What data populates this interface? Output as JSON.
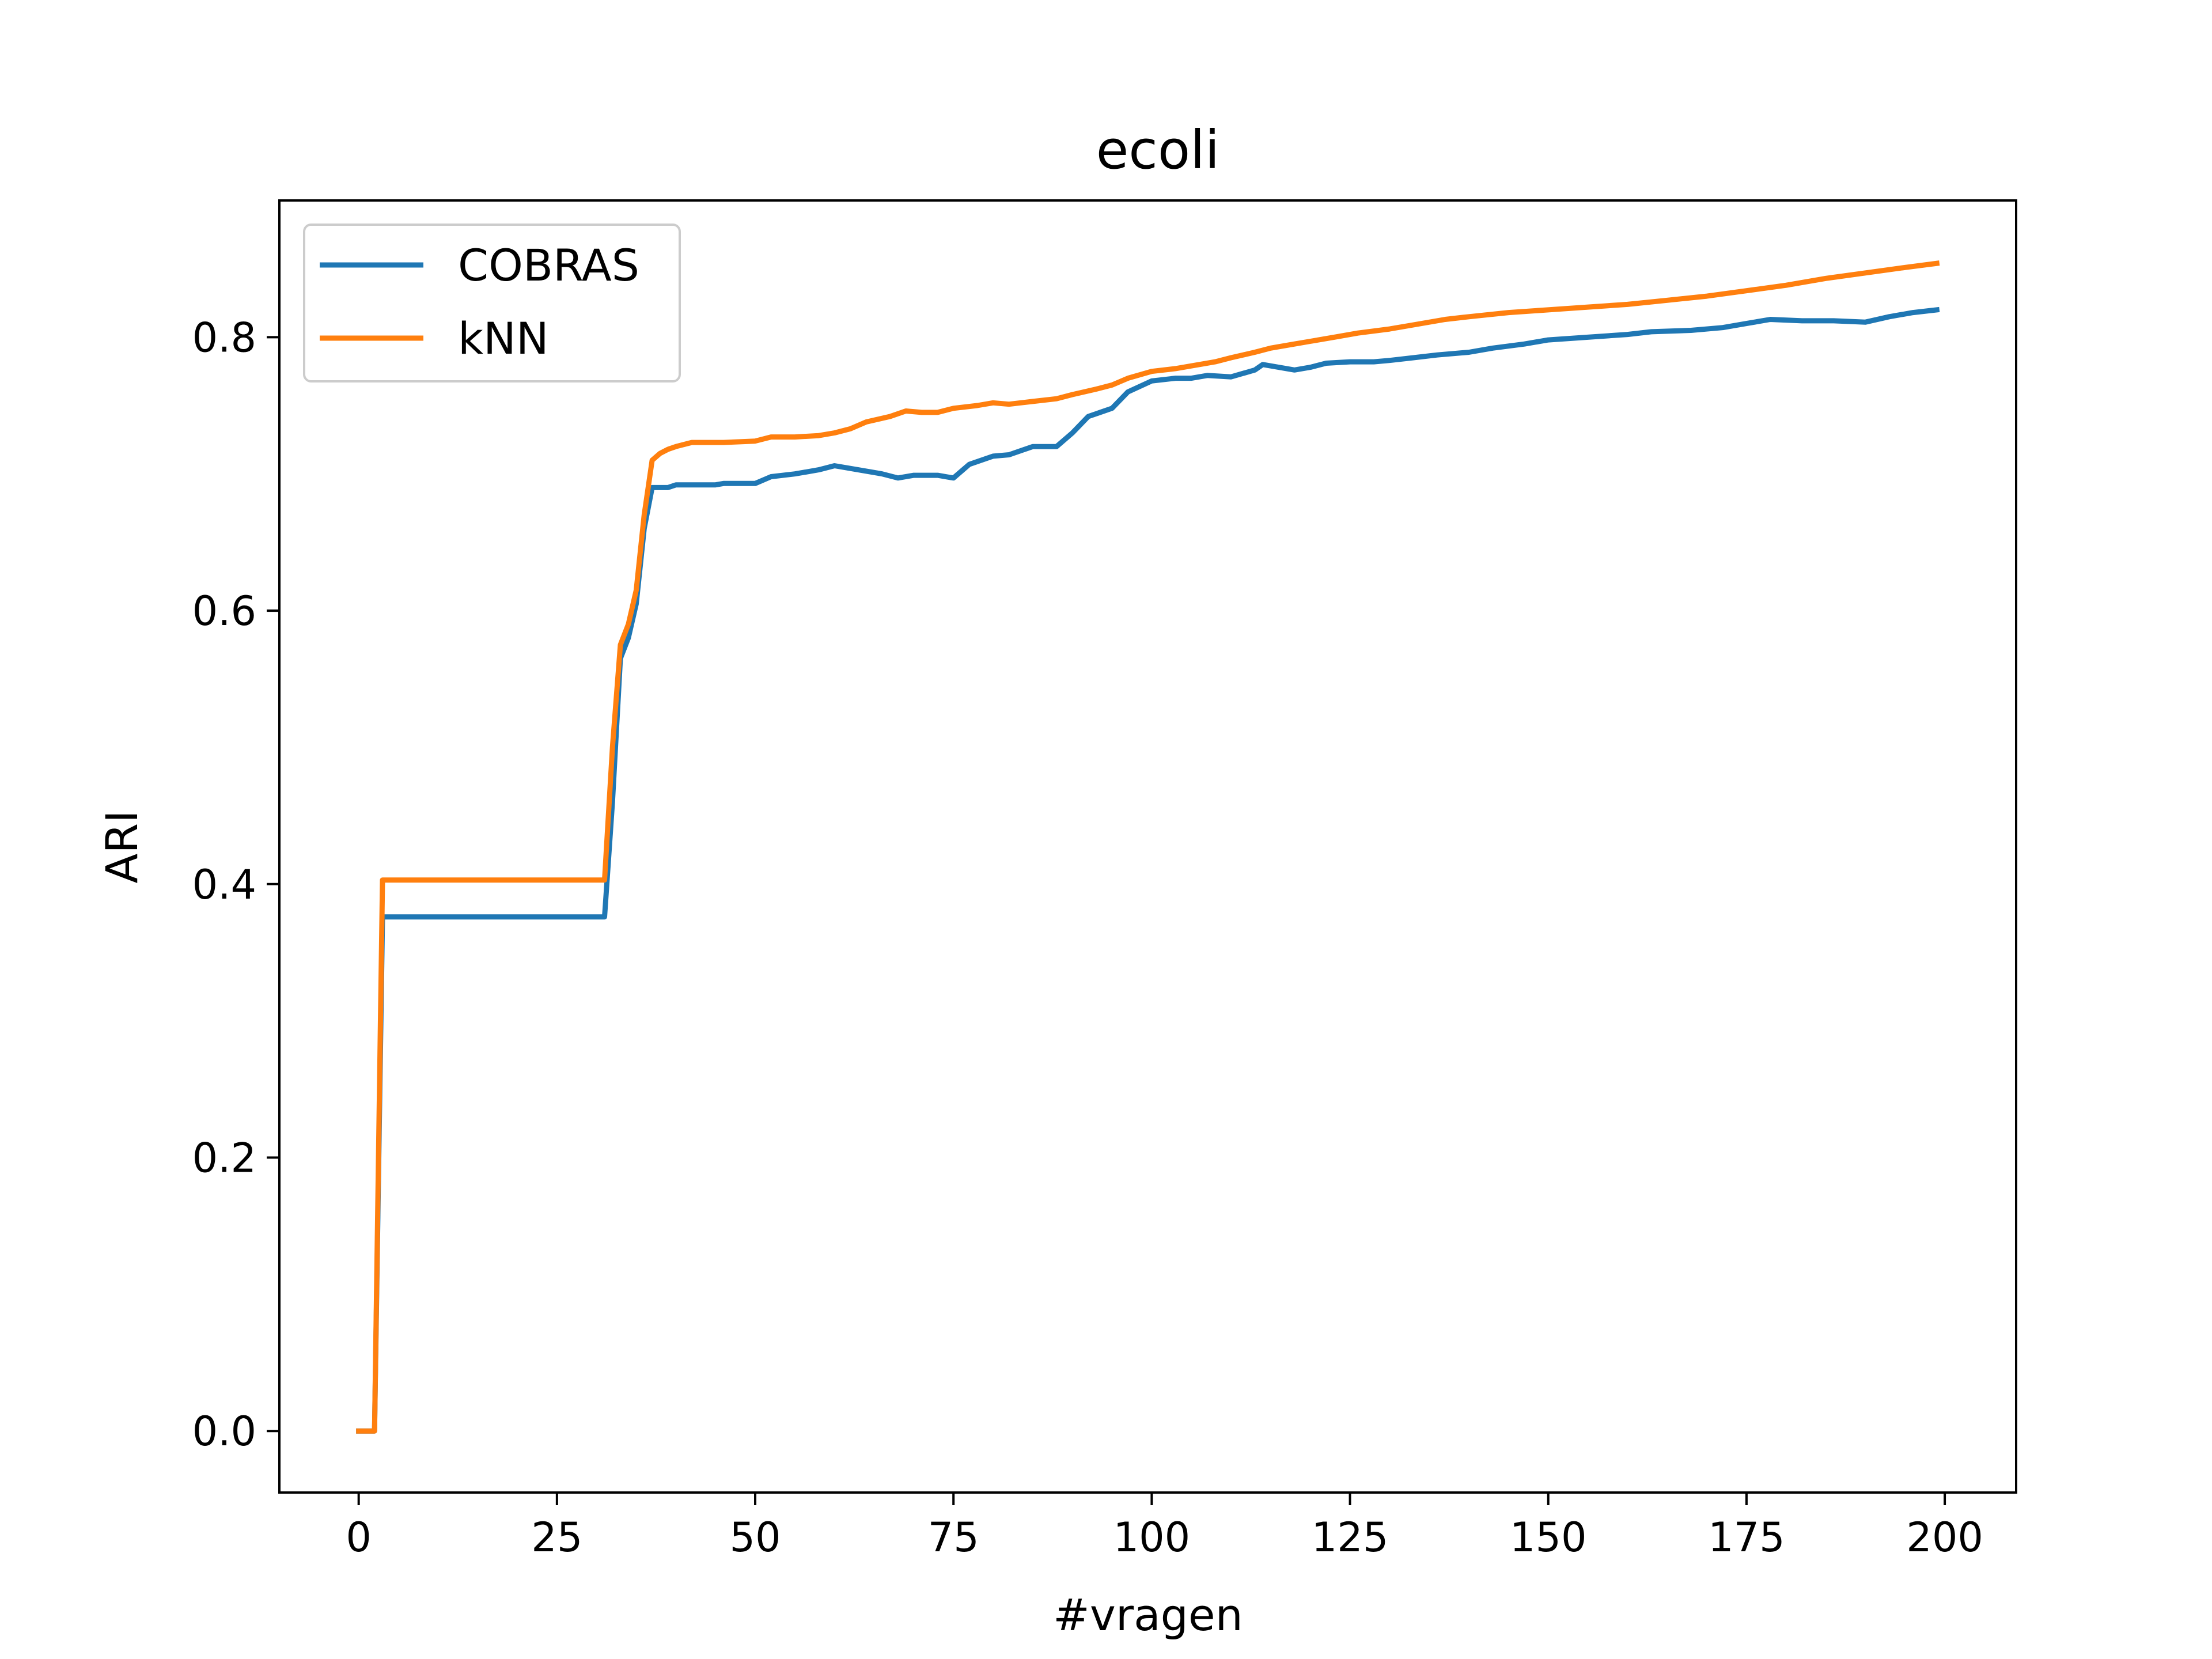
{
  "chart_data": {
    "type": "line",
    "title": "ecoli",
    "xlabel": "#vragen",
    "ylabel": "ARI",
    "xlim": [
      -10,
      209
    ],
    "ylim": [
      -0.045,
      0.9
    ],
    "xticks": [
      0,
      25,
      50,
      75,
      100,
      125,
      150,
      175,
      200
    ],
    "xtick_labels": [
      "0",
      "25",
      "50",
      "75",
      "100",
      "125",
      "150",
      "175",
      "200"
    ],
    "yticks": [
      0.0,
      0.2,
      0.4,
      0.6,
      0.8
    ],
    "ytick_labels": [
      "0.0",
      "0.2",
      "0.4",
      "0.6",
      "0.8"
    ],
    "grid": false,
    "legend_position": "top-left",
    "series": [
      {
        "name": "COBRAS",
        "color": "#1f77b4",
        "points": [
          [
            0,
            0.0
          ],
          [
            2,
            0.0
          ],
          [
            3,
            0.376
          ],
          [
            10,
            0.376
          ],
          [
            20,
            0.376
          ],
          [
            31,
            0.376
          ],
          [
            32,
            0.46
          ],
          [
            33,
            0.565
          ],
          [
            34,
            0.58
          ],
          [
            35,
            0.605
          ],
          [
            36,
            0.66
          ],
          [
            37,
            0.69
          ],
          [
            39,
            0.69
          ],
          [
            40,
            0.692
          ],
          [
            45,
            0.692
          ],
          [
            46,
            0.693
          ],
          [
            50,
            0.693
          ],
          [
            52,
            0.698
          ],
          [
            55,
            0.7
          ],
          [
            58,
            0.703
          ],
          [
            60,
            0.706
          ],
          [
            63,
            0.703
          ],
          [
            66,
            0.7
          ],
          [
            68,
            0.697
          ],
          [
            70,
            0.699
          ],
          [
            73,
            0.699
          ],
          [
            75,
            0.697
          ],
          [
            77,
            0.707
          ],
          [
            80,
            0.713
          ],
          [
            82,
            0.714
          ],
          [
            85,
            0.72
          ],
          [
            88,
            0.72
          ],
          [
            90,
            0.73
          ],
          [
            92,
            0.742
          ],
          [
            95,
            0.748
          ],
          [
            97,
            0.76
          ],
          [
            100,
            0.768
          ],
          [
            103,
            0.77
          ],
          [
            105,
            0.77
          ],
          [
            107,
            0.772
          ],
          [
            110,
            0.771
          ],
          [
            113,
            0.776
          ],
          [
            114,
            0.78
          ],
          [
            115,
            0.779
          ],
          [
            118,
            0.776
          ],
          [
            120,
            0.778
          ],
          [
            122,
            0.781
          ],
          [
            125,
            0.782
          ],
          [
            128,
            0.782
          ],
          [
            130,
            0.783
          ],
          [
            133,
            0.785
          ],
          [
            136,
            0.787
          ],
          [
            140,
            0.789
          ],
          [
            143,
            0.792
          ],
          [
            147,
            0.795
          ],
          [
            150,
            0.798
          ],
          [
            155,
            0.8
          ],
          [
            160,
            0.802
          ],
          [
            163,
            0.804
          ],
          [
            168,
            0.805
          ],
          [
            172,
            0.807
          ],
          [
            175,
            0.81
          ],
          [
            178,
            0.813
          ],
          [
            182,
            0.812
          ],
          [
            186,
            0.812
          ],
          [
            190,
            0.811
          ],
          [
            193,
            0.815
          ],
          [
            196,
            0.818
          ],
          [
            199,
            0.82
          ]
        ]
      },
      {
        "name": "kNN",
        "color": "#ff7f0e",
        "points": [
          [
            0,
            0.0
          ],
          [
            2,
            0.0
          ],
          [
            3,
            0.403
          ],
          [
            10,
            0.403
          ],
          [
            20,
            0.403
          ],
          [
            31,
            0.403
          ],
          [
            32,
            0.5
          ],
          [
            33,
            0.575
          ],
          [
            34,
            0.59
          ],
          [
            35,
            0.615
          ],
          [
            36,
            0.67
          ],
          [
            37,
            0.71
          ],
          [
            38,
            0.715
          ],
          [
            39,
            0.718
          ],
          [
            40,
            0.72
          ],
          [
            42,
            0.723
          ],
          [
            46,
            0.723
          ],
          [
            50,
            0.724
          ],
          [
            52,
            0.727
          ],
          [
            55,
            0.727
          ],
          [
            58,
            0.728
          ],
          [
            60,
            0.73
          ],
          [
            62,
            0.733
          ],
          [
            64,
            0.738
          ],
          [
            67,
            0.742
          ],
          [
            69,
            0.746
          ],
          [
            71,
            0.745
          ],
          [
            73,
            0.745
          ],
          [
            75,
            0.748
          ],
          [
            78,
            0.75
          ],
          [
            80,
            0.752
          ],
          [
            82,
            0.751
          ],
          [
            85,
            0.753
          ],
          [
            88,
            0.755
          ],
          [
            90,
            0.758
          ],
          [
            93,
            0.762
          ],
          [
            95,
            0.765
          ],
          [
            97,
            0.77
          ],
          [
            100,
            0.775
          ],
          [
            103,
            0.777
          ],
          [
            105,
            0.779
          ],
          [
            108,
            0.782
          ],
          [
            110,
            0.785
          ],
          [
            113,
            0.789
          ],
          [
            115,
            0.792
          ],
          [
            118,
            0.795
          ],
          [
            120,
            0.797
          ],
          [
            123,
            0.8
          ],
          [
            126,
            0.803
          ],
          [
            130,
            0.806
          ],
          [
            133,
            0.809
          ],
          [
            137,
            0.813
          ],
          [
            140,
            0.815
          ],
          [
            145,
            0.818
          ],
          [
            150,
            0.82
          ],
          [
            155,
            0.822
          ],
          [
            160,
            0.824
          ],
          [
            165,
            0.827
          ],
          [
            170,
            0.83
          ],
          [
            175,
            0.834
          ],
          [
            180,
            0.838
          ],
          [
            185,
            0.843
          ],
          [
            190,
            0.847
          ],
          [
            195,
            0.851
          ],
          [
            199,
            0.854
          ]
        ]
      }
    ]
  }
}
